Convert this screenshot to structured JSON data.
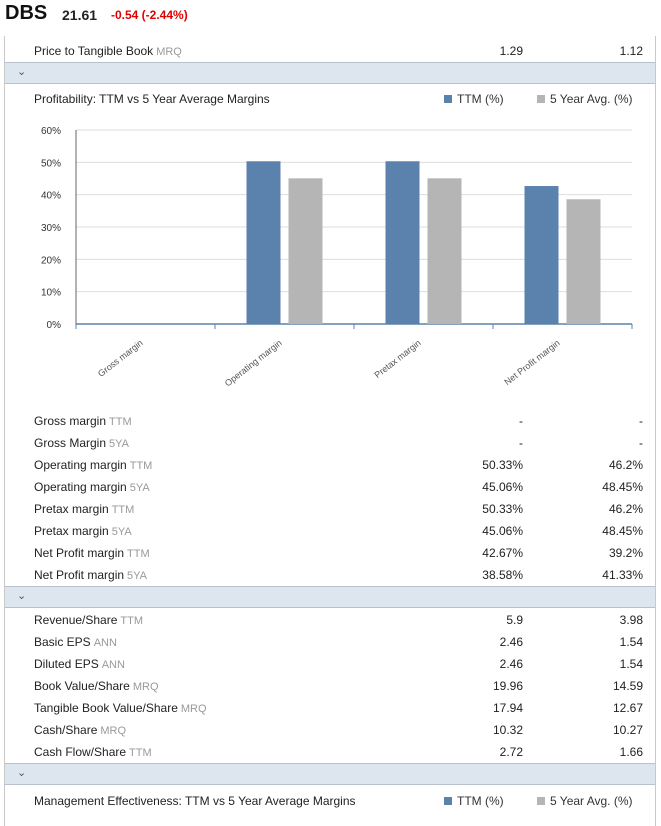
{
  "header": {
    "ticker": "DBS",
    "price": "21.61",
    "change": "-0.54 (-2.44%)"
  },
  "price_to_tangible_book": {
    "label": "Price to Tangible Book",
    "period": "MRQ",
    "value1": "1.29",
    "value2": "1.12"
  },
  "chevron_icon": "chevron-down",
  "profitability": {
    "title": "Profitability: TTM vs 5 Year Average Margins",
    "legend": {
      "ttm": "TTM (%)",
      "avg": "5 Year Avg. (%)"
    },
    "colors": {
      "ttm": "#5b82ac",
      "avg": "#b5b5b5"
    }
  },
  "chart_data": {
    "type": "bar",
    "categories": [
      "Gross margin",
      "Operating margin",
      "Pretax margin",
      "Net Profit margin"
    ],
    "series": [
      {
        "name": "TTM (%)",
        "values": [
          null,
          50.33,
          50.33,
          42.67
        ]
      },
      {
        "name": "5 Year Avg. (%)",
        "values": [
          null,
          45.06,
          45.06,
          38.58
        ]
      }
    ],
    "yticks": [
      "0%",
      "10%",
      "20%",
      "30%",
      "40%",
      "50%",
      "60%"
    ],
    "ylim": [
      0,
      60
    ],
    "grid": true,
    "legend_position": "top-right"
  },
  "margins": [
    {
      "label": "Gross margin",
      "period": "TTM",
      "value1": "-",
      "value2": "-"
    },
    {
      "label": "Gross Margin",
      "period": "5YA",
      "value1": "-",
      "value2": "-"
    },
    {
      "label": "Operating margin",
      "period": "TTM",
      "value1": "50.33%",
      "value2": "46.2%"
    },
    {
      "label": "Operating margin",
      "period": "5YA",
      "value1": "45.06%",
      "value2": "48.45%"
    },
    {
      "label": "Pretax margin",
      "period": "TTM",
      "value1": "50.33%",
      "value2": "46.2%"
    },
    {
      "label": "Pretax margin",
      "period": "5YA",
      "value1": "45.06%",
      "value2": "48.45%"
    },
    {
      "label": "Net Profit margin",
      "period": "TTM",
      "value1": "42.67%",
      "value2": "39.2%"
    },
    {
      "label": "Net Profit margin",
      "period": "5YA",
      "value1": "38.58%",
      "value2": "41.33%"
    }
  ],
  "per_share": [
    {
      "label": "Revenue/Share",
      "period": "TTM",
      "value1": "5.9",
      "value2": "3.98"
    },
    {
      "label": "Basic EPS",
      "period": "ANN",
      "value1": "2.46",
      "value2": "1.54"
    },
    {
      "label": "Diluted EPS",
      "period": "ANN",
      "value1": "2.46",
      "value2": "1.54"
    },
    {
      "label": "Book Value/Share",
      "period": "MRQ",
      "value1": "19.96",
      "value2": "14.59"
    },
    {
      "label": "Tangible Book Value/Share",
      "period": "MRQ",
      "value1": "17.94",
      "value2": "12.67"
    },
    {
      "label": "Cash/Share",
      "period": "MRQ",
      "value1": "10.32",
      "value2": "10.27"
    },
    {
      "label": "Cash Flow/Share",
      "period": "TTM",
      "value1": "2.72",
      "value2": "1.66"
    }
  ],
  "management": {
    "title": "Management Effectiveness: TTM vs 5 Year Average Margins",
    "legend": {
      "ttm": "TTM (%)",
      "avg": "5 Year Avg. (%)"
    }
  }
}
